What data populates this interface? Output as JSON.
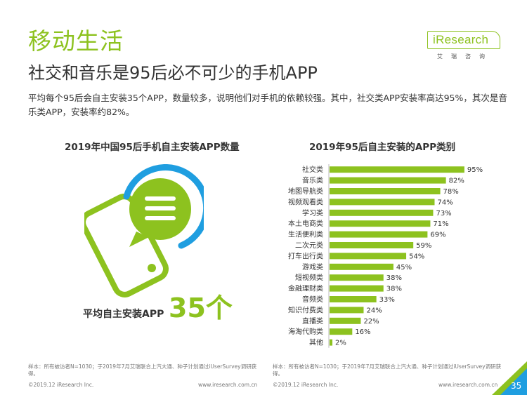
{
  "page": {
    "section_title": "移动生活",
    "headline": "社交和音乐是95后必不可少的手机APP",
    "summary": "平均每个95后会自主安装35个APP，数量较多，说明他们对手机的依赖较强。其中，社交类APP安装率高达95%，其次是音乐类APP，安装率约82%。",
    "page_number": "35"
  },
  "brand": {
    "logo_text": "iResearch",
    "logo_subtitle": "艾瑞咨询",
    "accent_color": "#8dc21f",
    "blue_color": "#1f9ee0"
  },
  "left_panel": {
    "title": "2019年中国95后手机自主安装APP数量",
    "avg_label": "平均自主安装APP",
    "avg_value": "35个",
    "footnote": "样本：所有被访者N=1030；于2019年7月艾瑞联合上汽大通、种子计划通过iUserSurvey调研获得。",
    "copyright": "©2019.12 iResearch Inc.",
    "url": "www.iresearch.com.cn"
  },
  "right_panel": {
    "title": "2019年95后自主安装的APP类别",
    "footnote": "样本：所有被访者N=1030；于2019年7月艾瑞联合上汽大通、种子计划通过iUserSurvey调研获得。",
    "copyright": "©2019.12 iResearch Inc.",
    "url": "www.iresearch.com.cn"
  },
  "chart_data": {
    "type": "bar",
    "orientation": "horizontal",
    "title": "2019年95后自主安装的APP类别",
    "categories": [
      "社交类",
      "音乐类",
      "地图导航类",
      "视频观看类",
      "学习类",
      "本土电商类",
      "生活便利类",
      "二次元类",
      "打车出行类",
      "游戏类",
      "短视频类",
      "金融理财类",
      "音频类",
      "知识付费类",
      "直播类",
      "海淘代购类",
      "其他"
    ],
    "values": [
      95,
      82,
      78,
      74,
      73,
      71,
      69,
      59,
      54,
      45,
      38,
      38,
      33,
      24,
      22,
      16,
      2
    ],
    "value_suffix": "%",
    "xlim": [
      0,
      100
    ],
    "bar_color": "#8dc21f",
    "xlabel": "",
    "ylabel": ""
  }
}
